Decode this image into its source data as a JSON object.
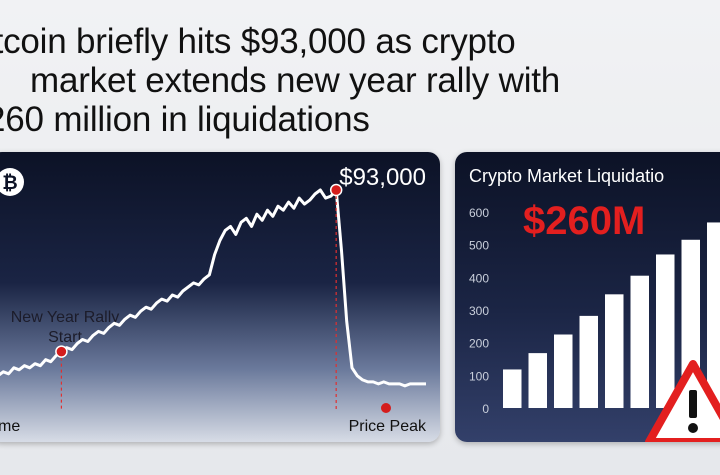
{
  "headline": {
    "line1": "itcoin briefly hits $93,000 as crypto",
    "line2": "market extends new year rally with",
    "line3": "260 million in liquidations"
  },
  "chart_data": [
    {
      "type": "line",
      "title": "",
      "price_label": "$93,000",
      "icon": "bitcoin-icon",
      "x_start_label": "me",
      "x_end_label": "Price Peak",
      "annotations": [
        {
          "text_line1": "New Year Rally",
          "text_line2": "Start",
          "point_index": 12
        },
        {
          "text": "$93,000",
          "point_index": 64
        }
      ],
      "series": [
        {
          "color": "#ffffff",
          "values": [
            8,
            10,
            9,
            12,
            11,
            13,
            12,
            14,
            13,
            16,
            15,
            18,
            20,
            22,
            21,
            24,
            26,
            25,
            28,
            30,
            29,
            32,
            34,
            33,
            36,
            38,
            37,
            40,
            42,
            41,
            44,
            46,
            45,
            48,
            47,
            50,
            52,
            54,
            53,
            56,
            58,
            68,
            75,
            80,
            82,
            78,
            84,
            86,
            82,
            88,
            85,
            90,
            87,
            92,
            90,
            94,
            91,
            96,
            93,
            95,
            98,
            100,
            96,
            97,
            100,
            70,
            35,
            12,
            8,
            6,
            5,
            5,
            4,
            5,
            4,
            4,
            4,
            3,
            4,
            4,
            4,
            4
          ]
        }
      ],
      "ylim": [
        0,
        100
      ],
      "colors": {
        "line": "#ffffff",
        "marker": "#d41c1c",
        "guide": "#e03030"
      }
    },
    {
      "type": "bar",
      "title": "Crypto Market Liquidatio",
      "big_value": "$260M",
      "y_ticks": [
        "0",
        "100",
        "200",
        "300",
        "400",
        "500",
        "600"
      ],
      "ylim": [
        0,
        600
      ],
      "values": [
        118,
        168,
        225,
        282,
        348,
        405,
        470,
        515,
        568
      ],
      "colors": {
        "bar": "#ffffff",
        "big_value": "#e31f1f",
        "warning": "#e31f1f"
      },
      "icon": "warning-icon"
    }
  ]
}
